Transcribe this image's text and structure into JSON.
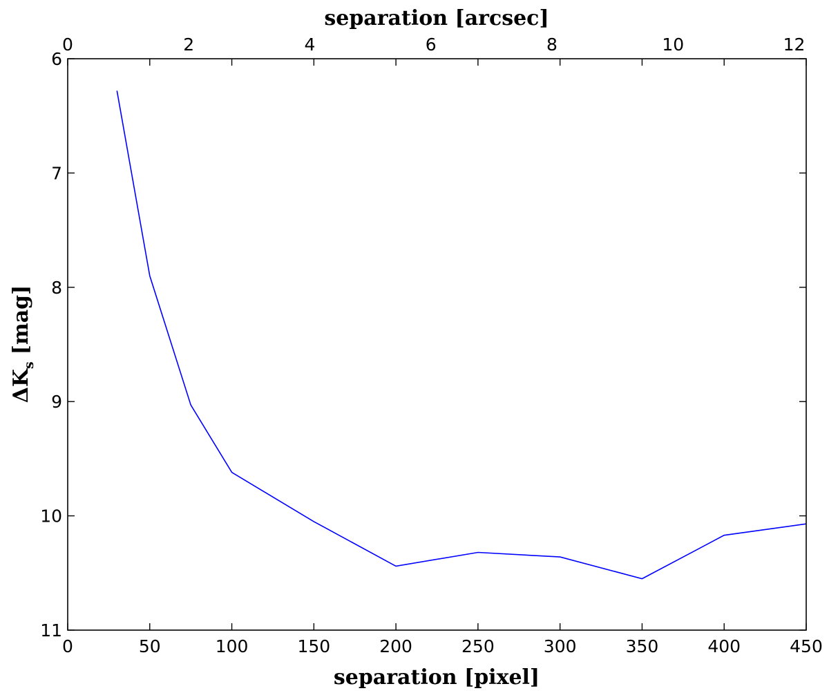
{
  "chart_data": {
    "type": "line",
    "title": "",
    "xlabel": "separation [pixel]",
    "x2label": "separation [arcsec]",
    "ylabel_main": "ΔK",
    "ylabel_sub": "s",
    "ylabel_unit": "[mag]",
    "xlim": [
      0,
      450
    ],
    "x2lim": [
      0,
      12.2
    ],
    "ylim": [
      11,
      6
    ],
    "y_inverted": true,
    "grid": false,
    "legend": "none",
    "xticks": [
      0,
      50,
      100,
      150,
      200,
      250,
      300,
      350,
      400,
      450
    ],
    "x2ticks": [
      0,
      2,
      4,
      6,
      8,
      10,
      12
    ],
    "yticks": [
      6,
      7,
      8,
      9,
      10,
      11
    ],
    "series": [
      {
        "color": "#0000ff",
        "x": [
          30,
          50,
          75,
          100,
          150,
          200,
          250,
          300,
          350,
          400,
          450
        ],
        "y": [
          6.28,
          7.9,
          9.03,
          9.62,
          10.05,
          10.44,
          10.32,
          10.36,
          10.55,
          10.17,
          10.07
        ]
      }
    ]
  }
}
